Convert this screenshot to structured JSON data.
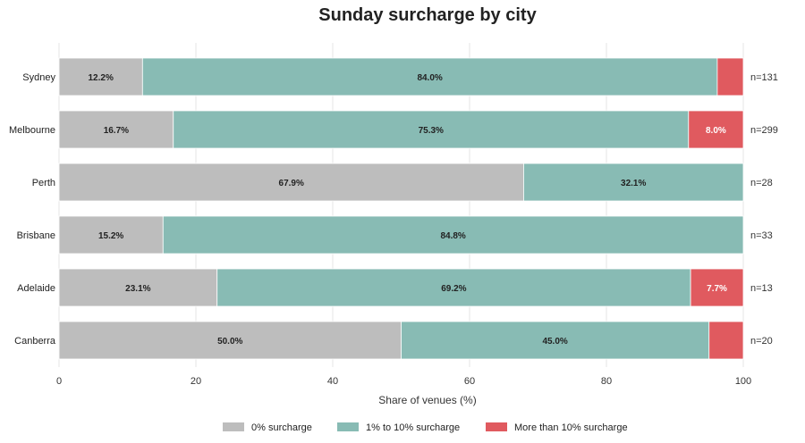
{
  "chart_data": {
    "type": "bar",
    "orientation": "horizontal",
    "stacked": true,
    "title": "Sunday surcharge by city",
    "xlabel": "Share of venues (%)",
    "ylabel": "",
    "xlim": [
      0,
      100
    ],
    "xticks": [
      0,
      20,
      40,
      60,
      80,
      100
    ],
    "categories": [
      "Sydney",
      "Melbourne",
      "Perth",
      "Brisbane",
      "Adelaide",
      "Canberra"
    ],
    "n_labels": [
      "n=131",
      "n=299",
      "n=28",
      "n=33",
      "n=13",
      "n=20"
    ],
    "series": [
      {
        "name": "0% surcharge",
        "color": "#bdbdbd",
        "label_color": "#222222",
        "values": [
          12.2,
          16.7,
          67.9,
          15.2,
          23.1,
          50.0
        ],
        "labels": [
          "12.2%",
          "16.7%",
          "67.9%",
          "15.2%",
          "23.1%",
          "50.0%"
        ]
      },
      {
        "name": "1% to 10% surcharge",
        "color": "#88bbb4",
        "label_color": "#222222",
        "values": [
          84.0,
          75.3,
          32.1,
          84.8,
          69.2,
          45.0
        ],
        "labels": [
          "84.0%",
          "75.3%",
          "32.1%",
          "84.8%",
          "69.2%",
          "45.0%"
        ]
      },
      {
        "name": "More than 10% surcharge",
        "color": "#e05a5f",
        "label_color": "#ffffff",
        "values": [
          3.8,
          8.0,
          0,
          0,
          7.7,
          5.0
        ],
        "labels": [
          "",
          "8.0%",
          "",
          "",
          "7.7%",
          ""
        ]
      }
    ],
    "grid": true,
    "legend_position": "bottom-center"
  }
}
